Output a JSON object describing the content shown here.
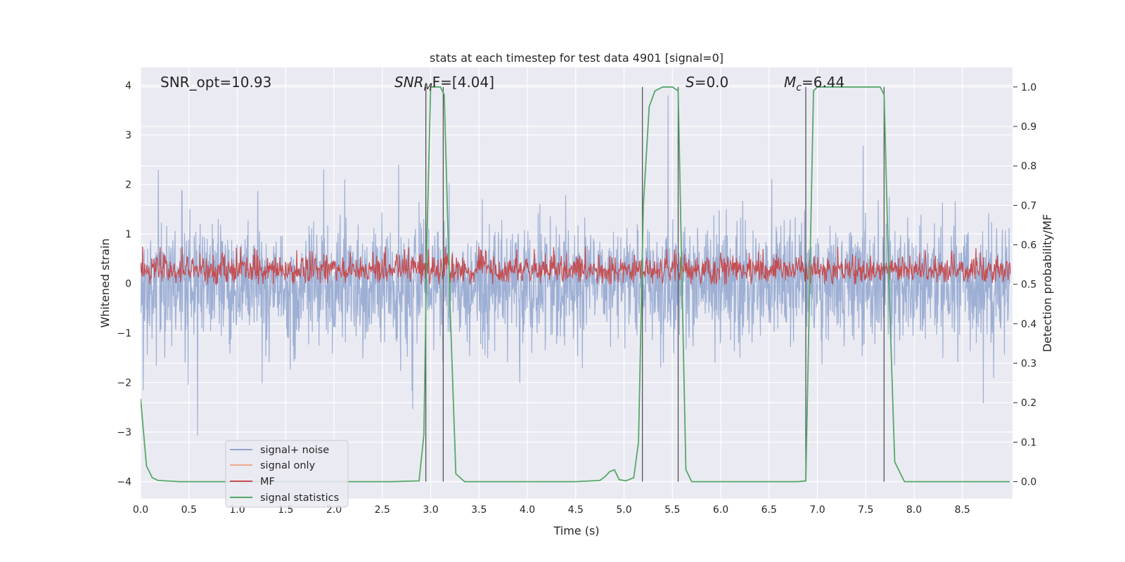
{
  "chart_data": {
    "type": "line",
    "title": "stats at each timestep for test data 4901 [signal=0]",
    "xlabel": "Time (s)",
    "ylabel_left": "Whitened strain",
    "ylabel_right": "Detection probability/MF",
    "xlim": [
      0,
      9
    ],
    "ylim_left": [
      -4.3,
      4.4
    ],
    "ylim_right": [
      -0.04,
      1.04
    ],
    "xticks": [
      "0.0",
      "0.5",
      "1.0",
      "1.5",
      "2.0",
      "2.5",
      "3.0",
      "3.5",
      "4.0",
      "4.5",
      "5.0",
      "5.5",
      "6.0",
      "6.5",
      "7.0",
      "7.5",
      "8.0",
      "8.5"
    ],
    "yticks_left": [
      "−4",
      "−3",
      "−2",
      "−1",
      "0",
      "1",
      "2",
      "3",
      "4"
    ],
    "yticks_right": [
      "0.0",
      "0.1",
      "0.2",
      "0.3",
      "0.4",
      "0.5",
      "0.6",
      "0.7",
      "0.8",
      "0.9",
      "1.0"
    ],
    "annotations": {
      "snr_opt": "SNR_opt=10.93",
      "snr_mf_base": "SNR",
      "snr_mf_sub": "M",
      "snr_mf_rest": "F=[4.04]",
      "s_italic": "S",
      "s_rest": "=0.0",
      "mc_base": "M",
      "mc_sub": "c",
      "mc_rest": "=6.44"
    },
    "legend": {
      "location": "lower left",
      "entries": [
        {
          "label": "signal+ noise",
          "color": "#8fa5cf"
        },
        {
          "label": "signal only",
          "color": "#eba98e"
        },
        {
          "label": "MF",
          "color": "#c44e52"
        },
        {
          "label": "signal statistics",
          "color": "#55a868"
        }
      ]
    },
    "series": [
      {
        "name": "signal+ noise",
        "color": "#8fa5cf",
        "description": "whitened strain noise, approx range -3.8 to 4.0"
      },
      {
        "name": "signal only",
        "color": "#eba98e",
        "values": []
      },
      {
        "name": "MF",
        "color": "#c44e52",
        "description": "matched filter output, approx range 0.0 to 0.9"
      },
      {
        "name": "signal statistics",
        "color": "#55a868",
        "x": [
          0.0,
          0.06,
          0.12,
          0.18,
          0.4,
          1.0,
          2.0,
          2.6,
          2.88,
          2.93,
          2.96,
          3.0,
          3.1,
          3.14,
          3.2,
          3.26,
          3.35,
          3.5,
          4.0,
          4.5,
          4.75,
          4.8,
          4.85,
          4.9,
          4.95,
          5.02,
          5.1,
          5.15,
          5.2,
          5.26,
          5.32,
          5.4,
          5.5,
          5.56,
          5.6,
          5.64,
          5.7,
          5.8,
          6.5,
          6.8,
          6.88,
          6.92,
          6.96,
          7.0,
          7.5,
          7.65,
          7.69,
          7.74,
          7.8,
          7.9,
          8.5,
          8.99
        ],
        "y": [
          0.21,
          0.04,
          0.01,
          0.003,
          0.0,
          0.0,
          0.0,
          0.0,
          0.002,
          0.12,
          0.6,
          1.0,
          1.0,
          0.98,
          0.45,
          0.02,
          0.0,
          0.0,
          0.0,
          0.0,
          0.003,
          0.012,
          0.025,
          0.03,
          0.005,
          0.002,
          0.01,
          0.1,
          0.7,
          0.95,
          0.99,
          1.0,
          1.0,
          0.99,
          0.5,
          0.03,
          0.0,
          0.0,
          0.0,
          0.0,
          0.002,
          0.5,
          0.99,
          1.0,
          1.0,
          1.0,
          0.98,
          0.5,
          0.05,
          0.0,
          0.0,
          0.0
        ]
      }
    ],
    "vertical_lines_x": [
      2.95,
      3.13,
      5.19,
      5.56,
      6.88,
      7.69
    ]
  }
}
